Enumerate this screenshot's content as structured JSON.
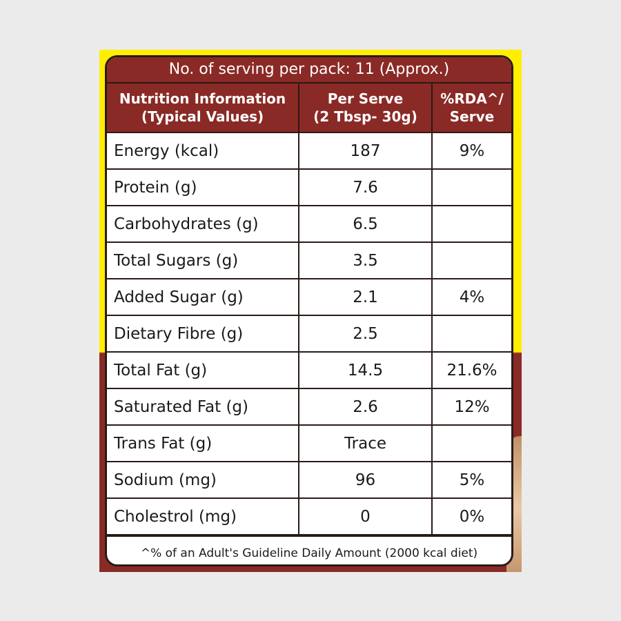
{
  "serving_line": "No. of serving per pack: 11 (Approx.)",
  "headers": {
    "col1_line1": "Nutrition Information",
    "col1_line2": "(Typical Values)",
    "col2_line1": "Per Serve",
    "col2_line2": "(2 Tbsp- 30g)",
    "col3_line1": "%RDA^/",
    "col3_line2": "Serve"
  },
  "rows": [
    {
      "name": "Energy (kcal)",
      "value": "187",
      "rda": "9%"
    },
    {
      "name": "Protein (g)",
      "value": "7.6",
      "rda": ""
    },
    {
      "name": "Carbohydrates (g)",
      "value": "6.5",
      "rda": ""
    },
    {
      "name": "Total Sugars (g)",
      "value": "3.5",
      "rda": ""
    },
    {
      "name": "Added Sugar (g)",
      "value": "2.1",
      "rda": "4%"
    },
    {
      "name": "Dietary Fibre (g)",
      "value": "2.5",
      "rda": ""
    },
    {
      "name": "Total Fat (g)",
      "value": "14.5",
      "rda": "21.6%"
    },
    {
      "name": "Saturated Fat (g)",
      "value": "2.6",
      "rda": "12%"
    },
    {
      "name": "Trans Fat (g)",
      "value": "Trace",
      "rda": ""
    },
    {
      "name": "Sodium (mg)",
      "value": "96",
      "rda": "5%"
    },
    {
      "name": "Cholestrol (mg)",
      "value": "0",
      "rda": "0%"
    }
  ],
  "footnote": "^% of an Adult's Guideline Daily Amount (2000 kcal diet)",
  "colors": {
    "brand_maroon": "#8a2a26",
    "brand_yellow": "#ffee00",
    "background": "#ebebeb"
  }
}
